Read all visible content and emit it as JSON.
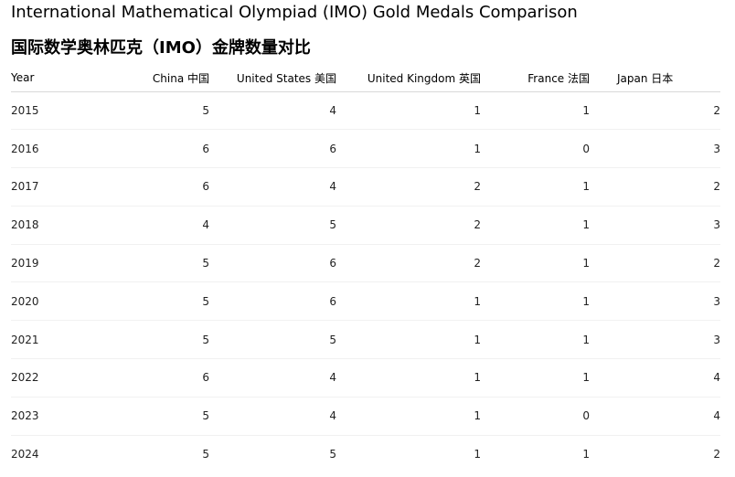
{
  "title_en": "International Mathematical Olympiad (IMO) Gold Medals Comparison",
  "title_zh": "国际数学奥林匹克（IMO）金牌数量对比",
  "table": {
    "headers": {
      "year": "Year",
      "china": "China 中国",
      "usa": "United States 美国",
      "uk": "United Kingdom 英国",
      "france": "France 法国",
      "japan": "Japan 日本"
    },
    "rows": [
      {
        "year": "2015",
        "china": "5",
        "usa": "4",
        "uk": "1",
        "france": "1",
        "japan": "2"
      },
      {
        "year": "2016",
        "china": "6",
        "usa": "6",
        "uk": "1",
        "france": "0",
        "japan": "3"
      },
      {
        "year": "2017",
        "china": "6",
        "usa": "4",
        "uk": "2",
        "france": "1",
        "japan": "2"
      },
      {
        "year": "2018",
        "china": "4",
        "usa": "5",
        "uk": "2",
        "france": "1",
        "japan": "3"
      },
      {
        "year": "2019",
        "china": "5",
        "usa": "6",
        "uk": "2",
        "france": "1",
        "japan": "2"
      },
      {
        "year": "2020",
        "china": "5",
        "usa": "6",
        "uk": "1",
        "france": "1",
        "japan": "3"
      },
      {
        "year": "2021",
        "china": "5",
        "usa": "5",
        "uk": "1",
        "france": "1",
        "japan": "3"
      },
      {
        "year": "2022",
        "china": "6",
        "usa": "4",
        "uk": "1",
        "france": "1",
        "japan": "4"
      },
      {
        "year": "2023",
        "china": "5",
        "usa": "4",
        "uk": "1",
        "france": "0",
        "japan": "4"
      },
      {
        "year": "2024",
        "china": "5",
        "usa": "5",
        "uk": "1",
        "france": "1",
        "japan": "2"
      }
    ]
  }
}
